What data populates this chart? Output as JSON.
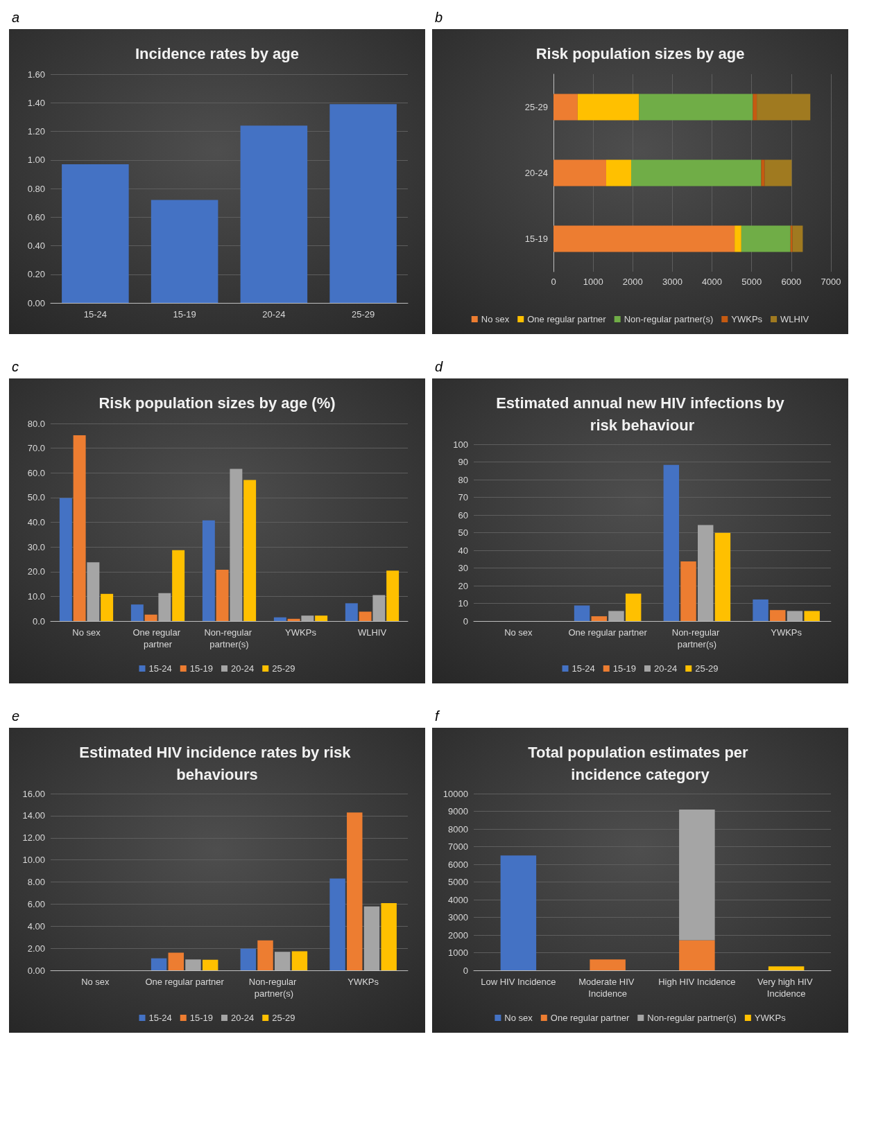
{
  "chart_data": [
    {
      "type": "bar",
      "title": "Incidence rates by age",
      "annotations": [
        "a"
      ],
      "categories": [
        "15-24",
        "15-19",
        "20-24",
        "25-29"
      ],
      "values": [
        0.97,
        0.72,
        1.24,
        1.39
      ],
      "color": "#4472c4",
      "ylim": [
        0,
        1.6
      ],
      "yticks": [
        {
          "value": 0,
          "label": "0.00"
        },
        {
          "value": 0.2,
          "label": "0.20"
        },
        {
          "value": 0.4,
          "label": "0.40"
        },
        {
          "value": 0.6,
          "label": "0.60"
        },
        {
          "value": 0.8,
          "label": "0.80"
        },
        {
          "value": 1,
          "label": "1.00"
        },
        {
          "value": 1.2,
          "label": "1.20"
        },
        {
          "value": 1.4,
          "label": "1.40"
        },
        {
          "value": 1.6,
          "label": "1.60"
        }
      ],
      "grid": "y",
      "legend": false
    },
    {
      "type": "bar",
      "title": "Risk population sizes by age",
      "annotations": [
        "b"
      ],
      "orientation": "horizontal",
      "stacked": true,
      "categories": [
        "25-29",
        "20-24",
        "15-19"
      ],
      "series": [
        {
          "name": "No sex",
          "color": "#ed7d31",
          "values": [
            610,
            1330,
            4570
          ]
        },
        {
          "name": "One regular partner",
          "color": "#ffc000",
          "values": [
            1550,
            630,
            170
          ]
        },
        {
          "name": "Non-regular partner(s)",
          "color": "#70ad47",
          "values": [
            2870,
            3280,
            1240
          ]
        },
        {
          "name": "YWKPs",
          "color": "#c55a11",
          "values": [
            100,
            90,
            50
          ]
        },
        {
          "name": "WLHIV",
          "color": "#a07a20",
          "values": [
            1350,
            680,
            260
          ]
        }
      ],
      "xlim": [
        0,
        7000
      ],
      "xticks": [
        0,
        1000,
        2000,
        3000,
        4000,
        5000,
        6000,
        7000
      ],
      "grid": "x",
      "legend": "bottom"
    },
    {
      "type": "bar",
      "title": "Risk population sizes by age (%)",
      "annotations": [
        "c"
      ],
      "categories": [
        "No sex",
        "One regular partner",
        "Non-regular partner(s)",
        "YWKPs",
        "WLHIV"
      ],
      "series": [
        {
          "name": "15-24",
          "color": "#4472c4",
          "values": [
            49.8,
            6.7,
            40.8,
            1.5,
            7.2
          ]
        },
        {
          "name": "15-19",
          "color": "#ed7d31",
          "values": [
            75.2,
            2.6,
            20.8,
            0.9,
            3.8
          ]
        },
        {
          "name": "20-24",
          "color": "#a5a5a5",
          "values": [
            23.8,
            11.3,
            61.6,
            2.2,
            10.5
          ]
        },
        {
          "name": "25-29",
          "color": "#ffc000",
          "values": [
            11.0,
            28.7,
            57.1,
            2.2,
            20.4
          ]
        }
      ],
      "ylim": [
        0,
        80
      ],
      "yticks": [
        {
          "value": 0,
          "label": "0.0"
        },
        {
          "value": 10,
          "label": "10.0"
        },
        {
          "value": 20,
          "label": "20.0"
        },
        {
          "value": 30,
          "label": "30.0"
        },
        {
          "value": 40,
          "label": "40.0"
        },
        {
          "value": 50,
          "label": "50.0"
        },
        {
          "value": 60,
          "label": "60.0"
        },
        {
          "value": 70,
          "label": "70.0"
        },
        {
          "value": 80,
          "label": "80.0"
        }
      ],
      "grid": "y",
      "legend": "bottom"
    },
    {
      "type": "bar",
      "title": "Estimated annual new HIV infections by risk behaviour",
      "annotations": [
        "d"
      ],
      "categories": [
        "No sex",
        "One regular partner",
        "Non-regular partner(s)",
        "YWKPs"
      ],
      "series": [
        {
          "name": "15-24",
          "color": "#4472c4",
          "values": [
            0,
            8.8,
            88.3,
            12.2
          ]
        },
        {
          "name": "15-19",
          "color": "#ed7d31",
          "values": [
            0,
            2.7,
            33.7,
            6.2
          ]
        },
        {
          "name": "20-24",
          "color": "#a5a5a5",
          "values": [
            0,
            5.7,
            54.3,
            5.7
          ]
        },
        {
          "name": "25-29",
          "color": "#ffc000",
          "values": [
            0,
            15.5,
            49.9,
            5.7
          ]
        }
      ],
      "ylim": [
        0,
        100
      ],
      "yticks": [
        0,
        10,
        20,
        30,
        40,
        50,
        60,
        70,
        80,
        90,
        100
      ],
      "grid": "y",
      "legend": "bottom"
    },
    {
      "type": "bar",
      "title": "Estimated HIV incidence rates by risk behaviours",
      "annotations": [
        "e"
      ],
      "categories": [
        "No sex",
        "One regular partner",
        "Non-regular partner(s)",
        "YWKPs"
      ],
      "series": [
        {
          "name": "15-24",
          "color": "#4472c4",
          "values": [
            0,
            1.09,
            1.97,
            8.32
          ]
        },
        {
          "name": "15-19",
          "color": "#ed7d31",
          "values": [
            0,
            1.6,
            2.72,
            14.29
          ]
        },
        {
          "name": "20-24",
          "color": "#a5a5a5",
          "values": [
            0,
            0.99,
            1.68,
            5.79
          ]
        },
        {
          "name": "25-29",
          "color": "#ffc000",
          "values": [
            0,
            0.96,
            1.73,
            6.08
          ]
        }
      ],
      "ylim": [
        0,
        16
      ],
      "yticks": [
        {
          "value": 0,
          "label": "0.00"
        },
        {
          "value": 2,
          "label": "2.00"
        },
        {
          "value": 4,
          "label": "4.00"
        },
        {
          "value": 6,
          "label": "6.00"
        },
        {
          "value": 8,
          "label": "8.00"
        },
        {
          "value": 10,
          "label": "10.00"
        },
        {
          "value": 12,
          "label": "12.00"
        },
        {
          "value": 14,
          "label": "14.00"
        },
        {
          "value": 16,
          "label": "16.00"
        }
      ],
      "grid": "y",
      "legend": "bottom"
    },
    {
      "type": "bar",
      "title": "Total population estimates per incidence category",
      "annotations": [
        "f"
      ],
      "stacked": true,
      "categories": [
        "Low HIV Incidence",
        "Moderate HIV Incidence",
        "High HIV Incidence",
        "Very high HIV Incidence"
      ],
      "series": [
        {
          "name": "No sex",
          "color": "#4472c4",
          "values": [
            6500,
            null,
            null,
            null
          ]
        },
        {
          "name": "One regular partner",
          "color": "#ed7d31",
          "values": [
            null,
            620,
            1710,
            null
          ]
        },
        {
          "name": "Non-regular partner(s)",
          "color": "#a5a5a5",
          "values": [
            null,
            null,
            7390,
            null
          ]
        },
        {
          "name": "YWKPs",
          "color": "#ffc000",
          "values": [
            null,
            null,
            null,
            230
          ]
        }
      ],
      "ylim": [
        0,
        10000
      ],
      "yticks": [
        0,
        1000,
        2000,
        3000,
        4000,
        5000,
        6000,
        7000,
        8000,
        9000,
        10000
      ],
      "grid": "y",
      "legend": "bottom"
    }
  ]
}
